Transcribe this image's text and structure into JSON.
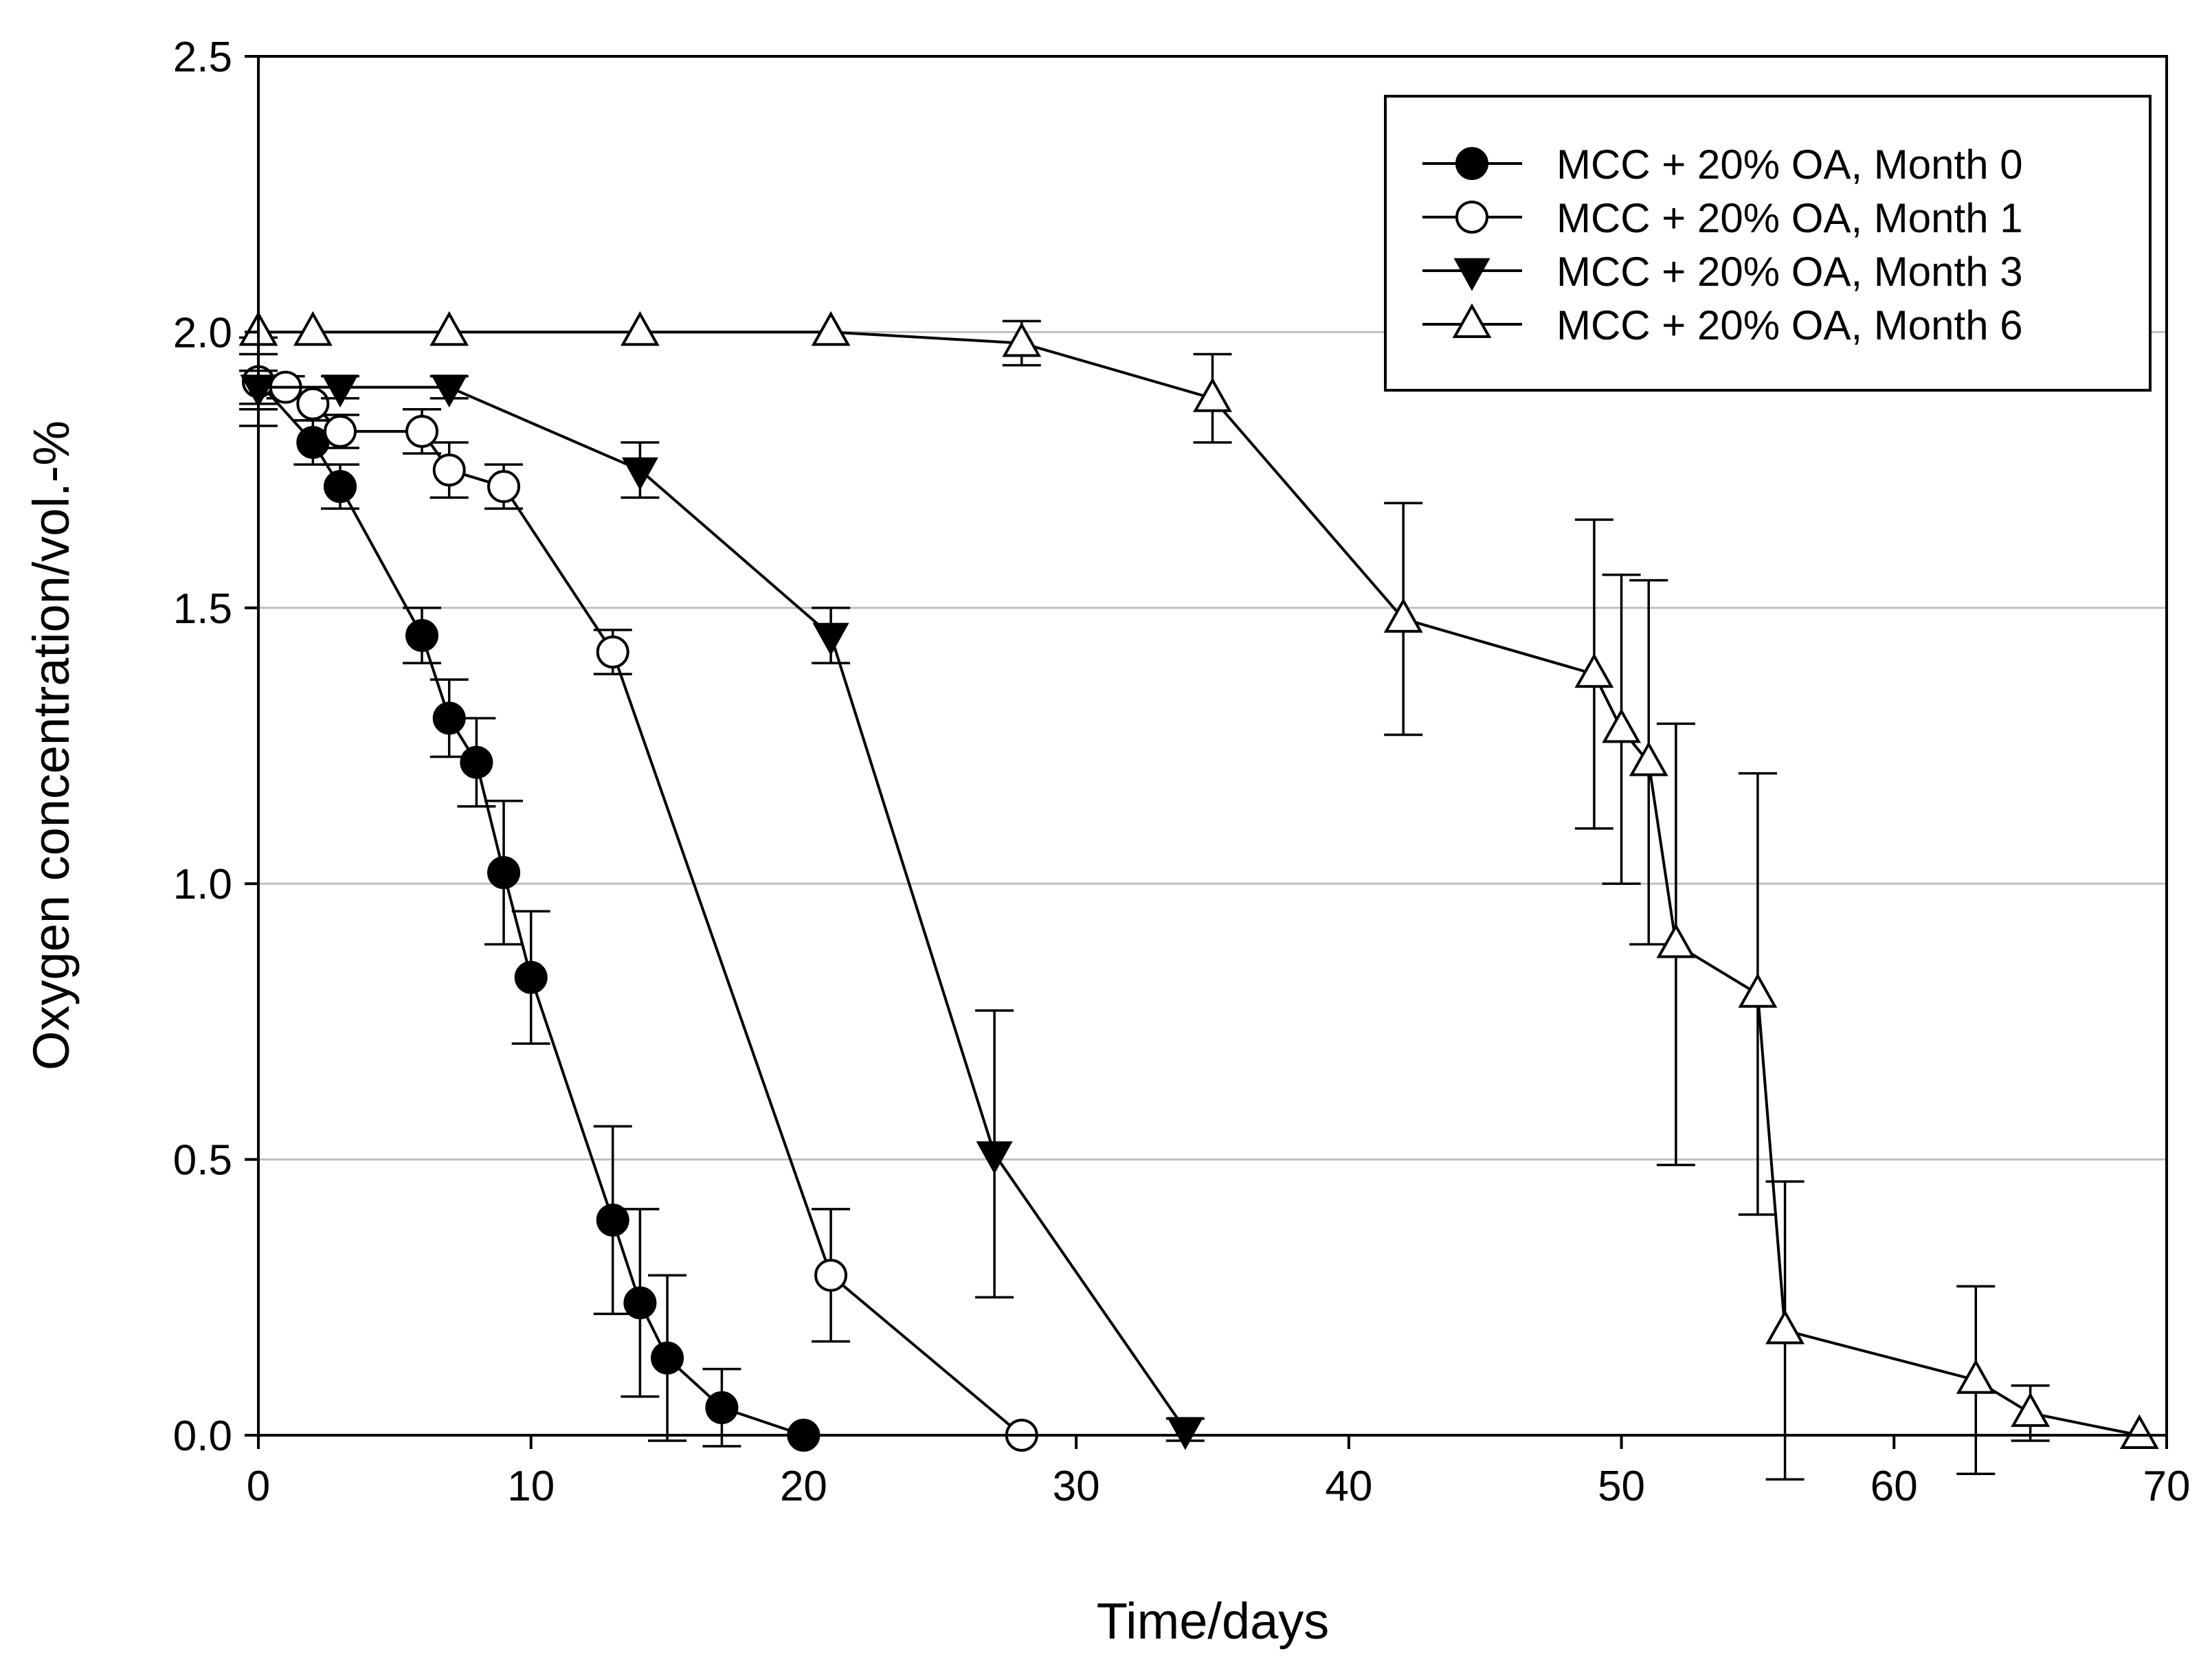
{
  "chart_data": {
    "type": "line",
    "title": "",
    "xlabel": "Time/days",
    "ylabel": "Oxygen concentration/vol.-%",
    "xlim": [
      0,
      70
    ],
    "ylim": [
      0,
      2.5
    ],
    "x_ticks": [
      0,
      10,
      20,
      30,
      40,
      50,
      60,
      70
    ],
    "x_tick_labels": [
      "0",
      "10",
      "20",
      "30",
      "40",
      "50",
      "60",
      "70"
    ],
    "y_ticks": [
      0.0,
      0.5,
      1.0,
      1.5,
      2.0,
      2.5
    ],
    "y_tick_labels": [
      "0.0",
      "0.5",
      "1.0",
      "1.5",
      "2.0",
      "2.5"
    ],
    "gridlines_y": [
      0.5,
      1.0,
      1.5,
      2.0
    ],
    "grid": "horizontal",
    "legend_position": "top-right",
    "colors": {
      "line": "#000000",
      "grid": "#bfbfbf",
      "background": "#ffffff"
    },
    "series": [
      {
        "name": "MCC + 20% OA, Month 0",
        "marker": "filled-circle",
        "x": [
          0,
          2,
          3,
          6,
          7,
          8,
          9,
          10,
          13,
          14,
          15,
          17,
          20
        ],
        "y": [
          1.91,
          1.8,
          1.72,
          1.45,
          1.3,
          1.22,
          1.02,
          0.83,
          0.39,
          0.24,
          0.14,
          0.05,
          0.0
        ],
        "error": [
          0.05,
          0.04,
          0.04,
          0.05,
          0.07,
          0.08,
          0.13,
          0.12,
          0.17,
          0.17,
          0.15,
          0.07,
          0.0
        ]
      },
      {
        "name": "MCC + 20% OA, Month 1",
        "marker": "open-circle",
        "x": [
          0,
          1,
          2,
          3,
          6,
          7,
          9,
          13,
          21,
          28
        ],
        "y": [
          1.91,
          1.9,
          1.87,
          1.82,
          1.82,
          1.75,
          1.72,
          1.42,
          0.29,
          0.0
        ],
        "error": [
          0.08,
          0.02,
          0.03,
          0.03,
          0.04,
          0.05,
          0.04,
          0.04,
          0.12,
          0.0
        ]
      },
      {
        "name": "MCC + 20% OA, Month 3",
        "marker": "filled-triangle-down",
        "x": [
          0,
          3,
          7,
          14,
          21,
          27,
          34
        ],
        "y": [
          1.9,
          1.9,
          1.9,
          1.75,
          1.45,
          0.51,
          0.01
        ],
        "error": [
          0.03,
          0.02,
          0.02,
          0.05,
          0.05,
          0.26,
          0.02
        ]
      },
      {
        "name": "MCC + 20% OA, Month 6",
        "marker": "open-triangle-up",
        "x": [
          0,
          2,
          7,
          14,
          21,
          28,
          35,
          42,
          49,
          50,
          51,
          52,
          55,
          56,
          63,
          65,
          69
        ],
        "y": [
          2.0,
          2.0,
          2.0,
          2.0,
          2.0,
          1.98,
          1.88,
          1.48,
          1.38,
          1.28,
          1.22,
          0.89,
          0.8,
          0.19,
          0.1,
          0.04,
          0.0
        ],
        "error": [
          0.0,
          0.0,
          0.0,
          0.0,
          0.0,
          0.04,
          0.08,
          0.21,
          0.28,
          0.28,
          0.33,
          0.4,
          0.4,
          0.27,
          0.17,
          0.05,
          0.0
        ]
      }
    ]
  }
}
